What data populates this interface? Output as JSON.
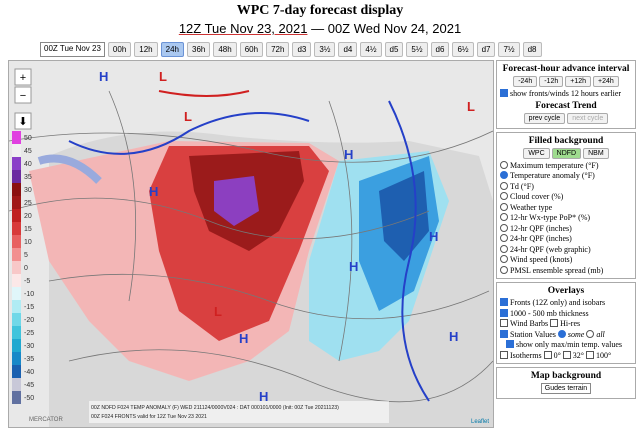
{
  "header": {
    "title": "WPC 7-day forecast display",
    "time_start": "12Z Tue Nov 23, 2021",
    "separator": "—",
    "time_end": "00Z Wed Nov 24, 2021"
  },
  "toolbar": {
    "select": "00Z Tue Nov 23",
    "buttons": [
      "00h",
      "12h",
      "24h",
      "36h",
      "48h",
      "60h",
      "72h",
      "d3",
      "3½",
      "d4",
      "4½",
      "d5",
      "5½",
      "d6",
      "6½",
      "d7",
      "7½",
      "d8"
    ],
    "selected": "24h"
  },
  "map": {
    "zoom_in": "+",
    "zoom_out": "−",
    "download": "⬇",
    "legend": [
      "50",
      "45",
      "40",
      "35",
      "30",
      "25",
      "20",
      "15",
      "10",
      "5",
      "0",
      "-5",
      "-10",
      "-15",
      "-20",
      "-25",
      "-30",
      "-35",
      "-40",
      "-45",
      "-50"
    ],
    "centers": [
      "H",
      "H",
      "L",
      "L",
      "H",
      "L",
      "H",
      "H",
      "H",
      "H",
      "H",
      "L"
    ],
    "caption": [
      "00Z NDFD F024 TEMP ANOMALY (F)  WED 211124/0000V024 : DAT 000101/0000 (Init: 00Z Tue 20211123)",
      "00Z F024 FRONTS valid for 12Z Tue Nov 23 2021"
    ],
    "attribution": "Leaflet",
    "watermark": "MERCATOR"
  },
  "panel": {
    "advance": {
      "title": "Forecast-hour advance interval",
      "buttons": [
        "-24h",
        "-12h",
        "+12h",
        "+24h"
      ],
      "option": "show fronts/winds 12 hours earlier"
    },
    "trend": {
      "title": "Forecast Trend",
      "buttons": [
        "prev cycle",
        "next cycle"
      ]
    },
    "filled": {
      "title": "Filled background",
      "tabs": [
        "WPC",
        "NDFD",
        "NBM"
      ],
      "selected_tab": "NDFD",
      "options": [
        "Maximum temperature (°F)",
        "Temperature anomaly (°F)",
        "Td (°F)",
        "Cloud cover (%)",
        "Weather type",
        "12-hr Wx-type PoP* (%)",
        "12-hr QPF (inches)",
        "24-hr QPF (inches)",
        "24-hr QPF (web graphic)",
        "Wind speed (knots)",
        "PMSL ensemble spread (mb)"
      ],
      "selected": "Temperature anomaly (°F)"
    },
    "overlays": {
      "title": "Overlays",
      "fronts": "Fronts (12Z only) and isobars",
      "thickness": "1000 - 500 mb thickness",
      "barbs": "Wind Barbs",
      "hires": "Hi-res",
      "stations": "Station Values",
      "some": "some",
      "all": "all",
      "maxmin": "show only max/min temp. values",
      "isotherms": "Isotherms",
      "iso_values": [
        "0°",
        "32°",
        "100°"
      ]
    },
    "background": {
      "title": "Map background",
      "select": "Gudes terrain"
    }
  }
}
